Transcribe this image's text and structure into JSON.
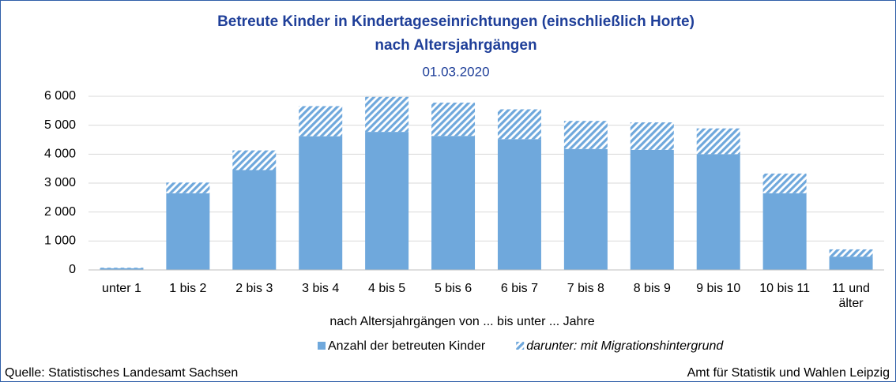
{
  "chart_data": {
    "type": "stacked_bar",
    "title": "Betreute Kinder in Kindertageseinrichtungen (einschließlich Horte)",
    "title_line2": "nach Altersjahrgängen",
    "subtitle": "01.03.2020",
    "x_label": "nach Altersjahrgängen von ... bis unter ... Jahre",
    "categories": [
      "unter 1",
      "1 bis 2",
      "2 bis 3",
      "3 bis 4",
      "4 bis 5",
      "5 bis 6",
      "6 bis 7",
      "7 bis 8",
      "8 bis 9",
      "9 bis 10",
      "10 bis 11",
      "11 und älter"
    ],
    "series": [
      {
        "name": "Anzahl der betreuten Kinder",
        "color": "#6fa8dc",
        "pattern": "solid",
        "values": [
          60,
          2650,
          3450,
          4620,
          4770,
          4630,
          4520,
          4180,
          4150,
          4000,
          2650,
          460
        ]
      },
      {
        "name": "darunter: mit Migrationshintergrund",
        "color": "#6fa8dc",
        "pattern": "hatched",
        "values": [
          20,
          370,
          680,
          1040,
          1210,
          1150,
          1030,
          970,
          950,
          890,
          680,
          250
        ]
      }
    ],
    "ylim": [
      0,
      6000
    ],
    "yticks": [
      0,
      {
        "value": 1000,
        "label": "1 000"
      },
      {
        "value": 2000,
        "label": "2 000"
      },
      {
        "value": 3000,
        "label": "3 000"
      },
      {
        "value": 4000,
        "label": "4 000"
      },
      {
        "value": 5000,
        "label": "5 000"
      },
      {
        "value": 6000,
        "label": "6 000"
      }
    ],
    "grid": true,
    "legend": "bottom",
    "source_left": "Quelle: Statistisches Landesamt Sachsen",
    "source_right": "Amt für Statistik und Wahlen Leipzig"
  }
}
